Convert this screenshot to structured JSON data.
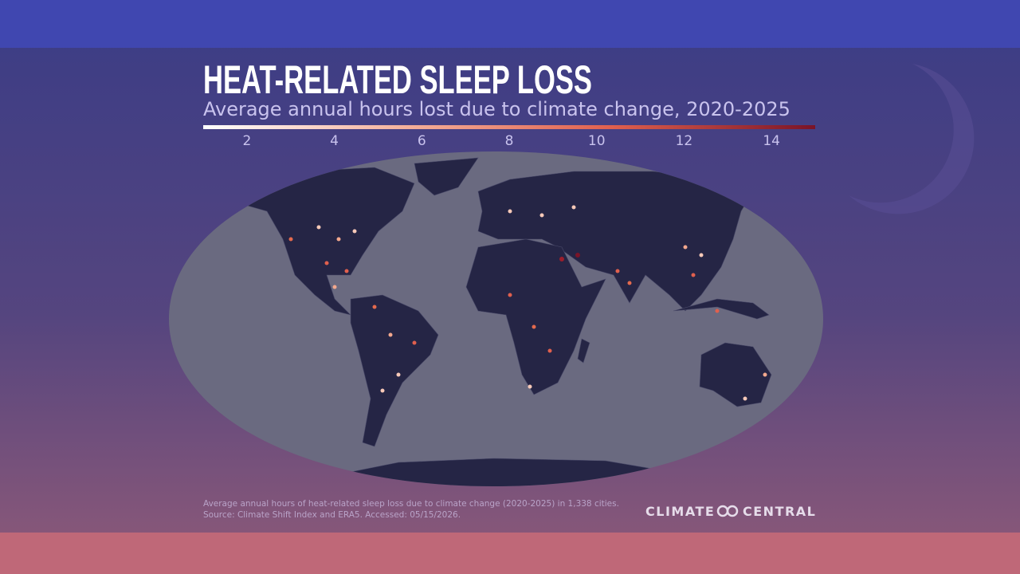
{
  "header": {
    "title": "HEAT-RELATED SLEEP LOSS",
    "subtitle": "Average annual hours lost due to climate change, 2020-2025"
  },
  "legend": {
    "range": [
      1,
      15
    ],
    "ticks": [
      2,
      4,
      6,
      8,
      10,
      12,
      14
    ],
    "colors": [
      "#ffffff",
      "#f4b09a",
      "#e0604e",
      "#7a1428"
    ]
  },
  "footer": {
    "note": "Average annual hours of heat-related sleep loss due to climate change (2020-2025) in 1,338 cities.",
    "source": "Source: Climate Shift Index and ERA5. Accessed: 05/15/2026.",
    "logo": "CLIMATE CENTRAL"
  }
}
